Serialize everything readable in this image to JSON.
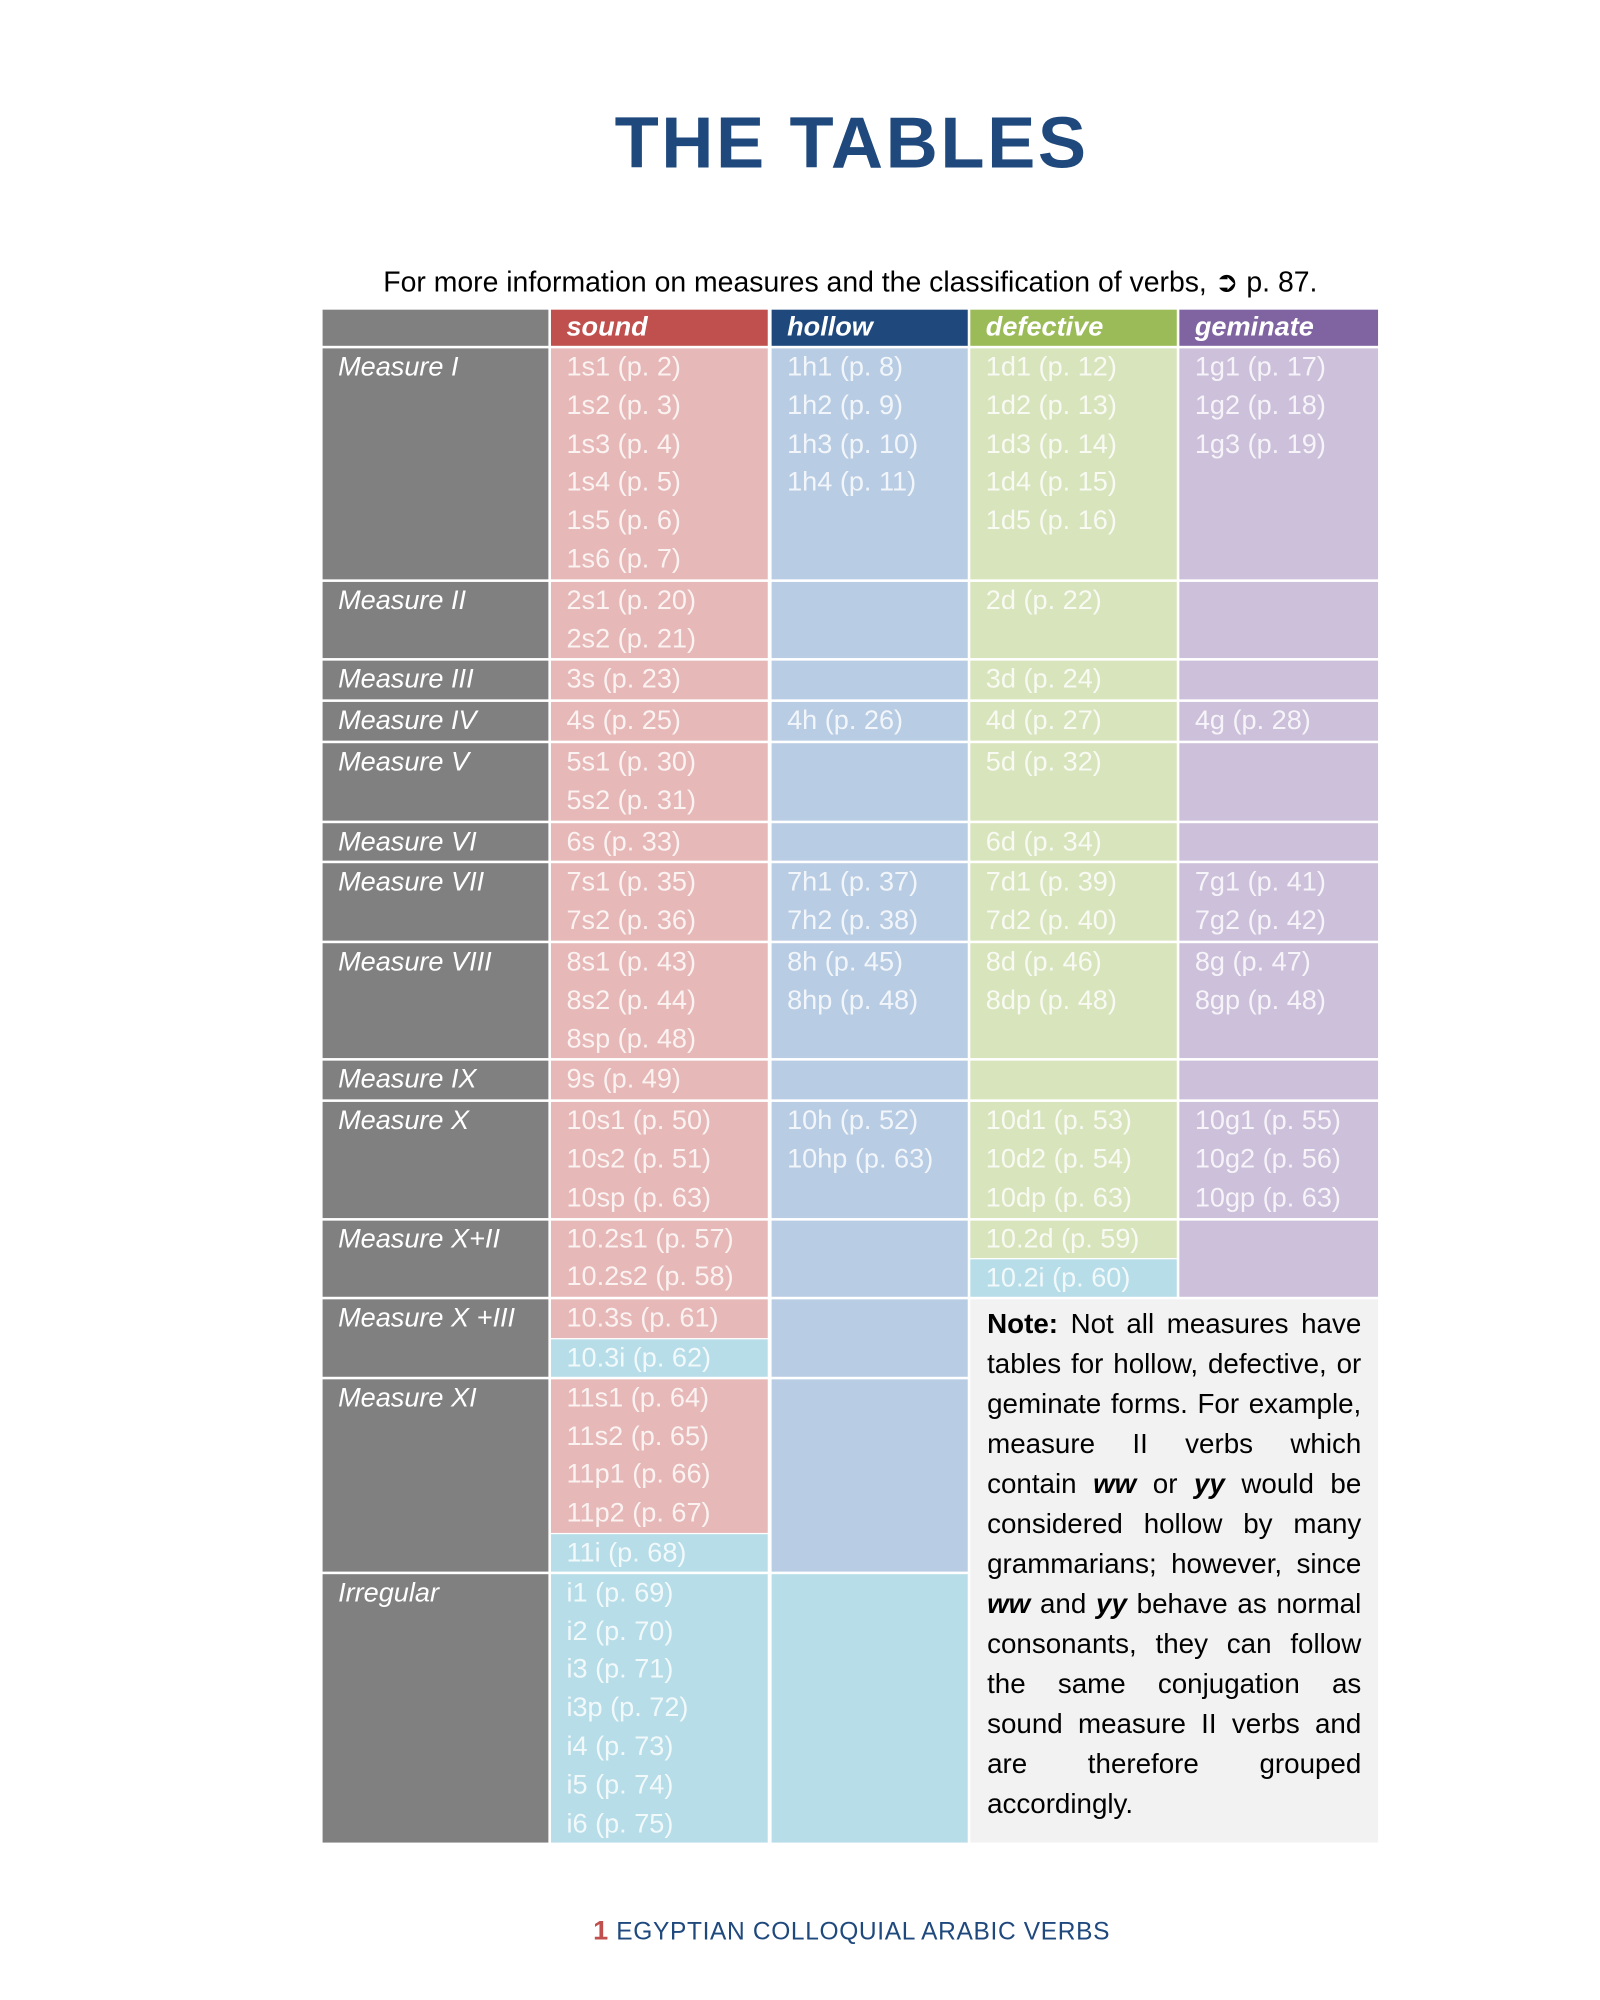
{
  "header": {
    "title": "THE TABLES"
  },
  "intro": "For more information on measures and the classification of verbs, ➲ p. 87.",
  "table": {
    "columns": [
      "sound",
      "hollow",
      "defective",
      "geminate"
    ],
    "rows": [
      {
        "label": "Measure I",
        "sound": [
          "1s1 (p. 2)",
          "1s2 (p. 3)",
          "1s3 (p. 4)",
          "1s4 (p. 5)",
          "1s5 (p. 6)",
          "1s6 (p. 7)"
        ],
        "hollow": [
          "1h1 (p. 8)",
          "1h2 (p. 9)",
          "1h3 (p. 10)",
          "1h4 (p. 11)"
        ],
        "defective": [
          "1d1 (p. 12)",
          "1d2 (p. 13)",
          "1d3 (p. 14)",
          "1d4 (p. 15)",
          "1d5 (p. 16)"
        ],
        "geminate": [
          "1g1 (p. 17)",
          "1g2 (p. 18)",
          "1g3 (p. 19)"
        ]
      },
      {
        "label": "Measure II",
        "sound": [
          "2s1 (p. 20)",
          "2s2 (p. 21)"
        ],
        "hollow": [],
        "defective": [
          "2d (p. 22)"
        ],
        "geminate": []
      },
      {
        "label": "Measure III",
        "sound": [
          "3s (p. 23)"
        ],
        "hollow": [],
        "defective": [
          "3d (p. 24)"
        ],
        "geminate": []
      },
      {
        "label": "Measure IV",
        "sound": [
          "4s (p. 25)"
        ],
        "hollow": [
          "4h (p. 26)"
        ],
        "defective": [
          "4d (p. 27)"
        ],
        "geminate": [
          "4g (p. 28)"
        ]
      },
      {
        "label": "Measure V",
        "sound": [
          "5s1 (p. 30)",
          "5s2 (p. 31)"
        ],
        "hollow": [],
        "defective": [
          "5d (p. 32)"
        ],
        "geminate": []
      },
      {
        "label": "Measure VI",
        "sound": [
          "6s (p. 33)"
        ],
        "hollow": [],
        "defective": [
          "6d (p. 34)"
        ],
        "geminate": []
      },
      {
        "label": "Measure VII",
        "sound": [
          "7s1 (p. 35)",
          "7s2 (p. 36)"
        ],
        "hollow": [
          "7h1 (p. 37)",
          "7h2 (p. 38)"
        ],
        "defective": [
          "7d1 (p. 39)",
          "7d2 (p. 40)"
        ],
        "geminate": [
          "7g1 (p. 41)",
          "7g2 (p. 42)"
        ]
      },
      {
        "label": "Measure VIII",
        "sound": [
          "8s1 (p. 43)",
          "8s2 (p. 44)",
          "8sp (p. 48)"
        ],
        "hollow": [
          "8h (p. 45)",
          "8hp (p. 48)"
        ],
        "defective": [
          "8d (p. 46)",
          "8dp (p. 48)"
        ],
        "geminate": [
          "8g (p. 47)",
          "8gp (p. 48)"
        ]
      },
      {
        "label": "Measure IX",
        "sound": [
          "9s (p. 49)"
        ],
        "hollow": [],
        "defective": [],
        "geminate": []
      },
      {
        "label": "Measure X",
        "sound": [
          "10s1 (p. 50)",
          "10s2 (p. 51)",
          "10sp (p. 63)"
        ],
        "hollow": [
          "10h (p. 52)",
          "10hp (p. 63)"
        ],
        "defective": [
          "10d1 (p. 53)",
          "10d2 (p. 54)",
          "10dp (p. 63)"
        ],
        "geminate": [
          "10g1 (p. 55)",
          "10g2 (p. 56)",
          "10gp (p. 63)"
        ]
      },
      {
        "label": "Measure X+II",
        "sound": [
          "10.2s1 (p. 57)",
          "10.2s2 (p. 58)"
        ],
        "hollow": [],
        "defective": [
          "10.2d (p. 59)"
        ],
        "defective_i": [
          "10.2i (p. 60)"
        ],
        "geminate": []
      },
      {
        "label": "Measure X +III",
        "sound": [
          "10.3s (p. 61)"
        ],
        "sound_i": [
          "10.3i (p. 62)"
        ],
        "hollow": []
      },
      {
        "label": "Measure XI",
        "sound": [
          "11s1 (p. 64)",
          "11s2 (p. 65)",
          "11p1 (p. 66)",
          "11p2 (p. 67)"
        ],
        "sound_i": [
          "11i (p. 68)"
        ],
        "hollow": []
      },
      {
        "label": "Irregular",
        "sound_i": [
          "i1 (p. 69)",
          "i2 (p. 70)",
          "i3 (p. 71)",
          "i3p (p. 72)",
          "i4 (p. 73)",
          "i5 (p. 74)",
          "i6 (p. 75)"
        ],
        "hollow": []
      }
    ]
  },
  "note": [
    "Note:",
    " Not all measures have tables for hollow, defective, or geminate forms. For example, measure II verbs which contain ",
    "ww",
    " or ",
    "yy",
    " would be considered hollow by many grammarians; however, since ",
    "ww",
    " and ",
    "yy",
    " behave as normal consonants, they can follow the same conjugation as sound measure II verbs and are therefore grouped accordingly."
  ],
  "footer": {
    "page": "1",
    "text": "EGYPTIAN COLLOQUIAL ARABIC VERBS"
  }
}
